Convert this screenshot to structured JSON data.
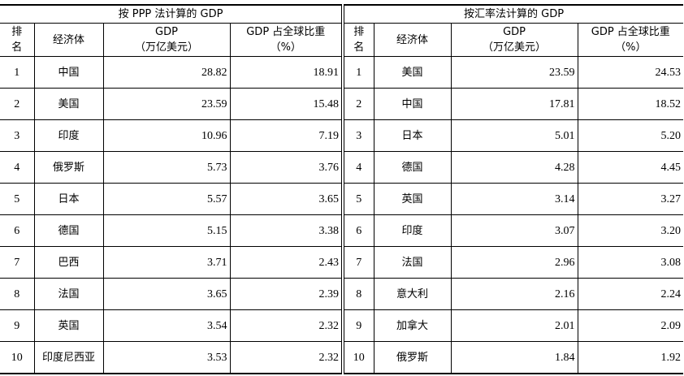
{
  "groups": [
    {
      "title": "按 PPP 法计算的 GDP"
    },
    {
      "title": "按汇率法计算的 GDP"
    }
  ],
  "headers": {
    "rank_line1": "排",
    "rank_line2": "名",
    "economy": "经济体",
    "gdp_line1": "GDP",
    "gdp_line2": "（万亿美元）",
    "share_line1": "GDP 占全球比重",
    "share_line2": "（%）"
  },
  "rows": [
    {
      "ppp": {
        "rank": "1",
        "economy": "中国",
        "gdp": "28.82",
        "share": "18.91"
      },
      "fx": {
        "rank": "1",
        "economy": "美国",
        "gdp": "23.59",
        "share": "24.53"
      }
    },
    {
      "ppp": {
        "rank": "2",
        "economy": "美国",
        "gdp": "23.59",
        "share": "15.48"
      },
      "fx": {
        "rank": "2",
        "economy": "中国",
        "gdp": "17.81",
        "share": "18.52"
      }
    },
    {
      "ppp": {
        "rank": "3",
        "economy": "印度",
        "gdp": "10.96",
        "share": "7.19"
      },
      "fx": {
        "rank": "3",
        "economy": "日本",
        "gdp": "5.01",
        "share": "5.20"
      }
    },
    {
      "ppp": {
        "rank": "4",
        "economy": "俄罗斯",
        "gdp": "5.73",
        "share": "3.76"
      },
      "fx": {
        "rank": "4",
        "economy": "德国",
        "gdp": "4.28",
        "share": "4.45"
      }
    },
    {
      "ppp": {
        "rank": "5",
        "economy": "日本",
        "gdp": "5.57",
        "share": "3.65"
      },
      "fx": {
        "rank": "5",
        "economy": "英国",
        "gdp": "3.14",
        "share": "3.27"
      }
    },
    {
      "ppp": {
        "rank": "6",
        "economy": "德国",
        "gdp": "5.15",
        "share": "3.38"
      },
      "fx": {
        "rank": "6",
        "economy": "印度",
        "gdp": "3.07",
        "share": "3.20"
      }
    },
    {
      "ppp": {
        "rank": "7",
        "economy": "巴西",
        "gdp": "3.71",
        "share": "2.43"
      },
      "fx": {
        "rank": "7",
        "economy": "法国",
        "gdp": "2.96",
        "share": "3.08"
      }
    },
    {
      "ppp": {
        "rank": "8",
        "economy": "法国",
        "gdp": "3.65",
        "share": "2.39"
      },
      "fx": {
        "rank": "8",
        "economy": "意大利",
        "gdp": "2.16",
        "share": "2.24"
      }
    },
    {
      "ppp": {
        "rank": "9",
        "economy": "英国",
        "gdp": "3.54",
        "share": "2.32"
      },
      "fx": {
        "rank": "9",
        "economy": "加拿大",
        "gdp": "2.01",
        "share": "2.09"
      }
    },
    {
      "ppp": {
        "rank": "10",
        "economy": "印度尼西亚",
        "gdp": "3.53",
        "share": "2.32"
      },
      "fx": {
        "rank": "10",
        "economy": "俄罗斯",
        "gdp": "1.84",
        "share": "1.92"
      }
    }
  ]
}
